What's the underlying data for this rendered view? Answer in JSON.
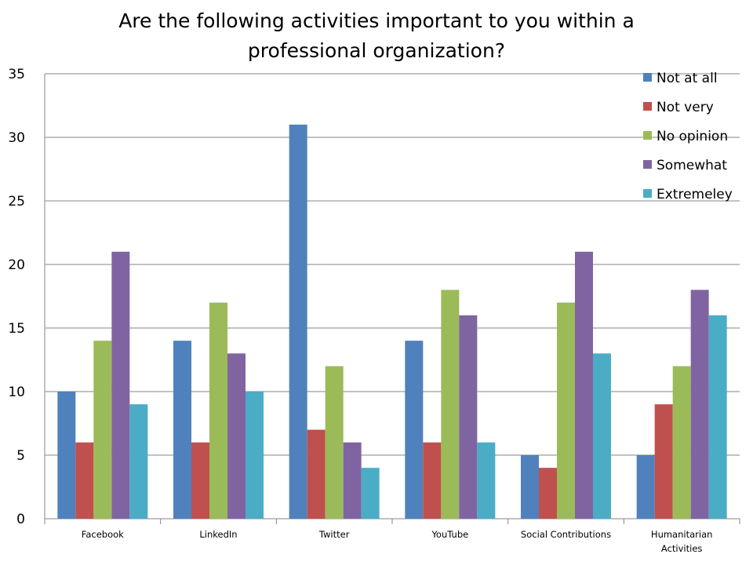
{
  "chart_data": {
    "type": "bar",
    "title": "Are the following activities important to you within a professional organization?",
    "categories": [
      [
        "Facebook"
      ],
      [
        "LinkedIn"
      ],
      [
        "Twitter"
      ],
      [
        "YouTube"
      ],
      [
        "Social Contributions"
      ],
      [
        "Humanitarian",
        "Activities"
      ]
    ],
    "series": [
      {
        "name": "Not at all",
        "color": "#4F81BD",
        "values": [
          10,
          14,
          31,
          14,
          5,
          5
        ]
      },
      {
        "name": "Not very",
        "color": "#C0504D",
        "values": [
          6,
          6,
          7,
          6,
          4,
          9
        ]
      },
      {
        "name": "No opinion",
        "color": "#9BBB59",
        "values": [
          14,
          17,
          12,
          18,
          17,
          12
        ]
      },
      {
        "name": "Somewhat",
        "color": "#8064A2",
        "values": [
          21,
          13,
          6,
          16,
          21,
          18
        ]
      },
      {
        "name": "Extremeley",
        "color": "#4BACC6",
        "values": [
          9,
          10,
          4,
          6,
          13,
          16
        ]
      }
    ],
    "ylim": [
      0,
      35
    ],
    "yticks": [
      0,
      5,
      10,
      15,
      20,
      25,
      30,
      35
    ],
    "grid": true,
    "legend_position": "top-right"
  }
}
